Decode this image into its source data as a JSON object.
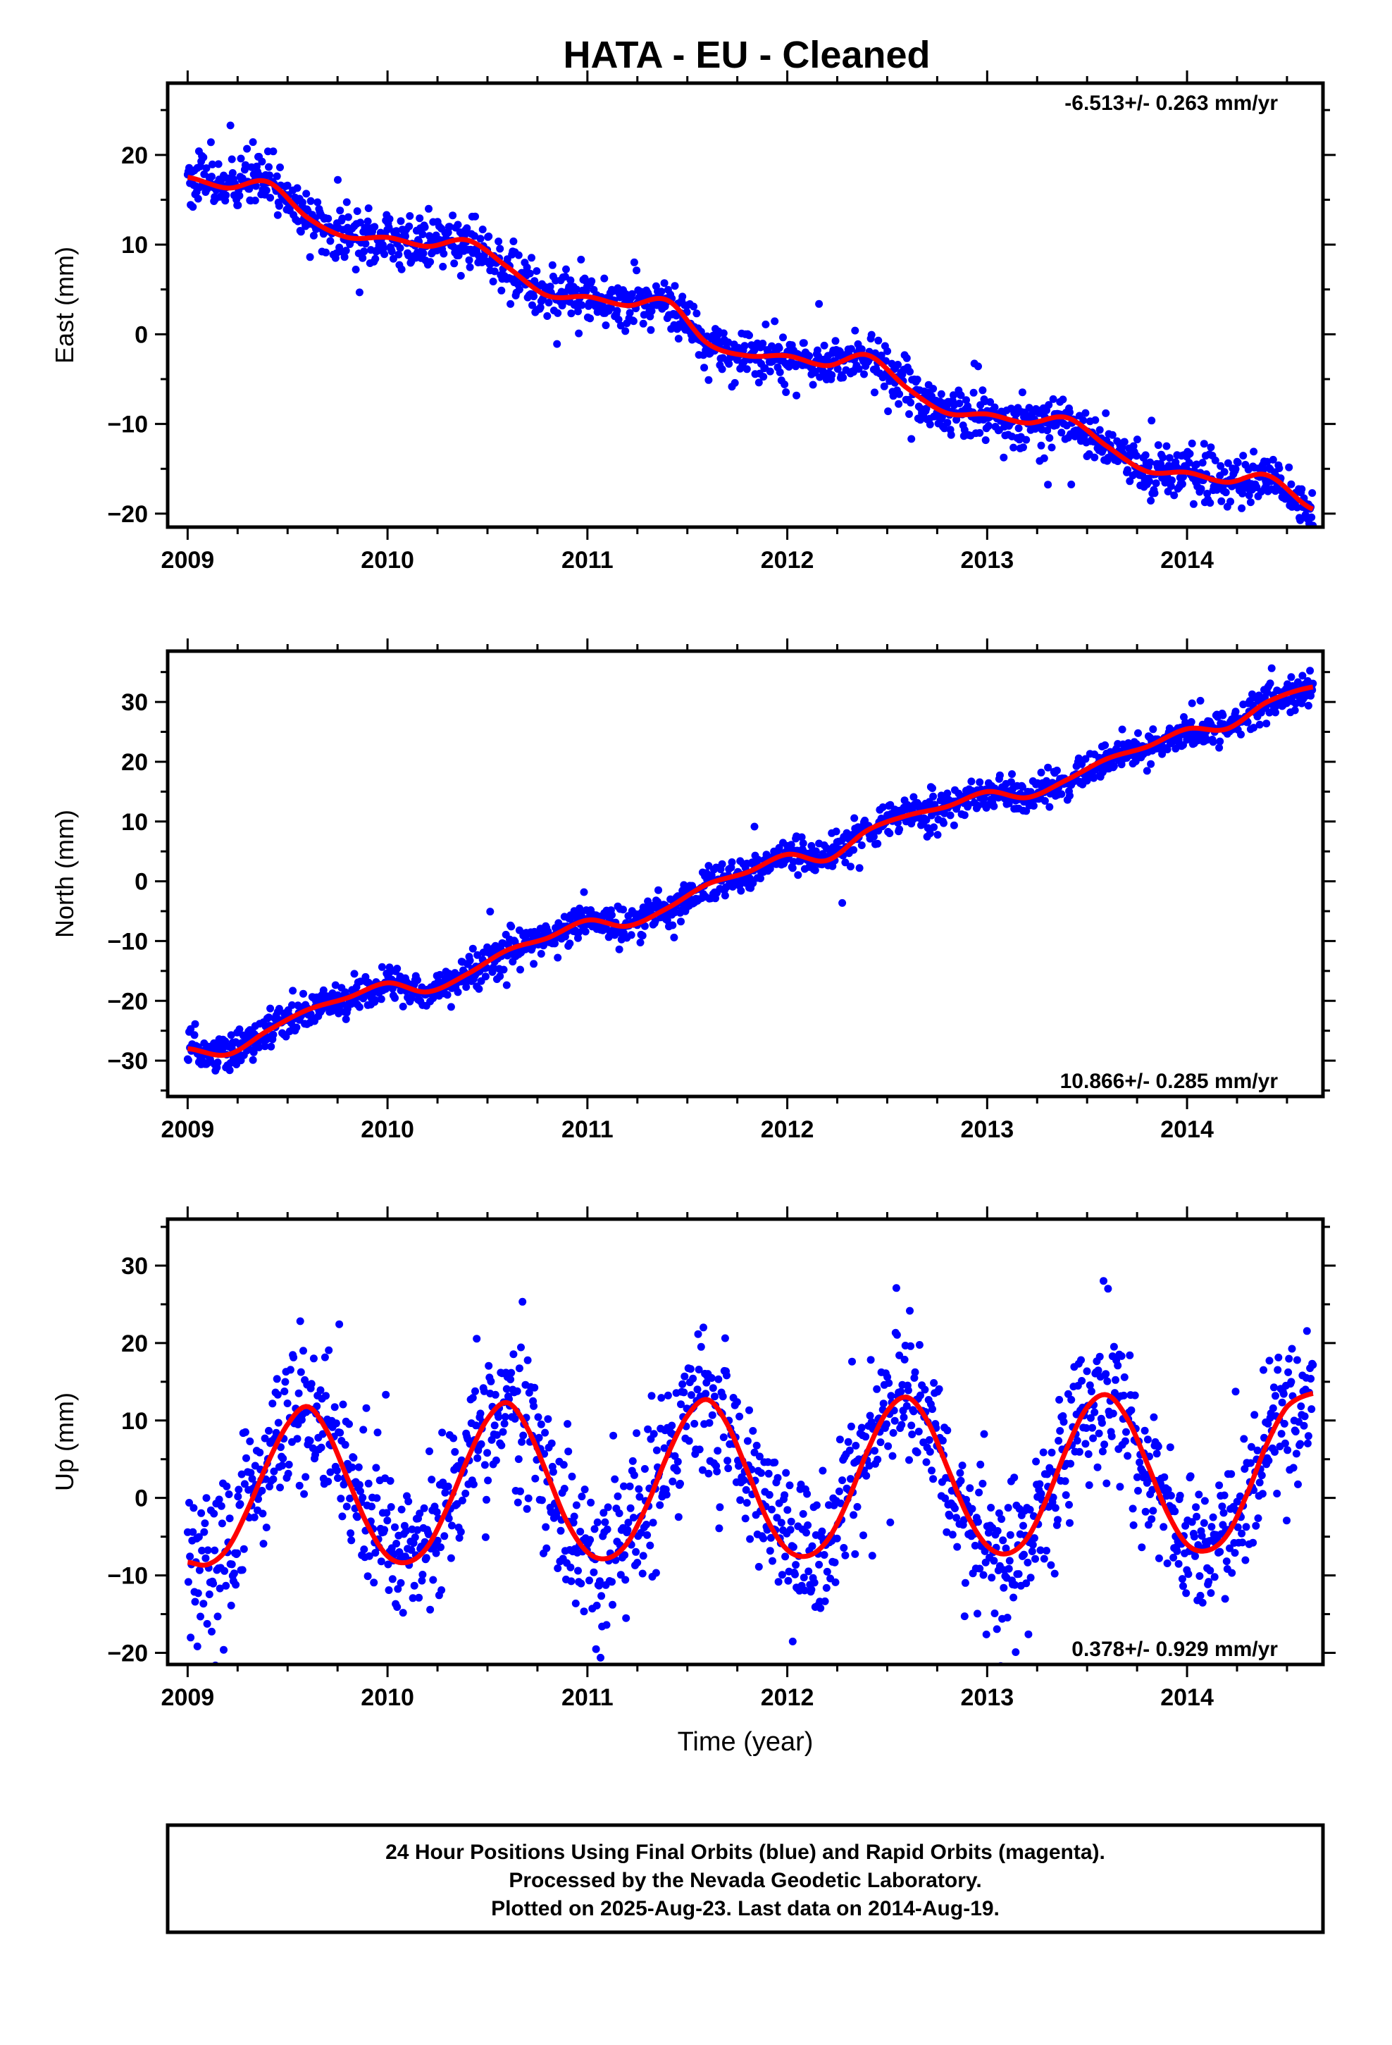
{
  "title": "HATA  - EU - Cleaned",
  "colors": {
    "points": "#0000ff",
    "model": "#ff0000",
    "axis": "#000000"
  },
  "footer": {
    "line1": "24 Hour Positions Using Final Orbits (blue) and Rapid Orbits (magenta).",
    "line2": "Processed by the Nevada Geodetic Laboratory.",
    "line3": "Plotted on 2025-Aug-23. Last data on 2014-Aug-19."
  },
  "chart_data": [
    {
      "type": "scatter",
      "ylabel": "East (mm)",
      "xlabel": "",
      "rate": "-6.513+/- 0.263 mm/yr",
      "xlim": [
        2008.9,
        2014.68
      ],
      "ylim": [
        -21.5,
        28
      ],
      "xticks": [
        "2009",
        "2010",
        "2011",
        "2012",
        "2013",
        "2014"
      ],
      "yticks": [
        "20",
        "10",
        "0",
        "−10",
        "−20"
      ],
      "model_x": [
        2009.0,
        2009.2,
        2009.4,
        2009.6,
        2009.8,
        2010.0,
        2010.2,
        2010.4,
        2010.6,
        2010.8,
        2011.0,
        2011.2,
        2011.4,
        2011.6,
        2011.8,
        2012.0,
        2012.2,
        2012.4,
        2012.6,
        2012.8,
        2013.0,
        2013.2,
        2013.4,
        2013.6,
        2013.8,
        2014.0,
        2014.2,
        2014.4,
        2014.63
      ],
      "model_y": [
        17.5,
        16.3,
        17.0,
        13.0,
        10.8,
        10.8,
        9.8,
        10.5,
        7.5,
        4.3,
        4.2,
        3.2,
        3.8,
        -1.0,
        -2.4,
        -2.4,
        -3.5,
        -2.3,
        -6.0,
        -8.8,
        -8.9,
        -9.9,
        -9.3,
        -12.5,
        -15.3,
        -15.4,
        -16.5,
        -15.7,
        -19.5
      ],
      "points": {
        "scatter_mm": 1.4,
        "n": 1500,
        "t_start": 2009.0,
        "t_end": 2014.63
      }
    },
    {
      "type": "scatter",
      "ylabel": "North (mm)",
      "xlabel": "",
      "rate": "10.866+/- 0.285 mm/yr",
      "xlim": [
        2008.9,
        2014.68
      ],
      "ylim": [
        -36,
        38.5
      ],
      "xticks": [
        "2009",
        "2010",
        "2011",
        "2012",
        "2013",
        "2014"
      ],
      "yticks": [
        "30",
        "20",
        "10",
        "0",
        "−10",
        "−20",
        "−30"
      ],
      "model_x": [
        2009.0,
        2009.2,
        2009.4,
        2009.6,
        2009.8,
        2010.0,
        2010.2,
        2010.4,
        2010.6,
        2010.8,
        2011.0,
        2011.2,
        2011.4,
        2011.6,
        2011.8,
        2012.0,
        2012.2,
        2012.4,
        2012.6,
        2012.8,
        2013.0,
        2013.2,
        2013.4,
        2013.6,
        2013.8,
        2014.0,
        2014.2,
        2014.4,
        2014.63
      ],
      "model_y": [
        -28.0,
        -29.0,
        -25.0,
        -21.5,
        -19.5,
        -17.0,
        -18.5,
        -15.5,
        -11.5,
        -9.5,
        -6.5,
        -7.5,
        -4.5,
        -0.5,
        1.5,
        4.5,
        3.5,
        8.5,
        11.0,
        12.5,
        15.0,
        14.0,
        17.0,
        20.5,
        22.5,
        25.5,
        25.5,
        30.0,
        32.5
      ],
      "points": {
        "scatter_mm": 1.5,
        "n": 1500,
        "t_start": 2009.0,
        "t_end": 2014.63
      }
    },
    {
      "type": "scatter",
      "ylabel": "Up (mm)",
      "xlabel": "Time (year)",
      "rate": "0.378+/- 0.929 mm/yr",
      "xlim": [
        2008.9,
        2014.68
      ],
      "ylim": [
        -21.5,
        36
      ],
      "xticks": [
        "2009",
        "2010",
        "2011",
        "2012",
        "2013",
        "2014"
      ],
      "yticks": [
        "30",
        "20",
        "10",
        "0",
        "−10",
        "−20"
      ],
      "model_x": [
        2009.0,
        2009.1,
        2009.2,
        2009.3,
        2009.4,
        2009.5,
        2009.6,
        2009.7,
        2009.8,
        2009.9,
        2010.0,
        2010.1,
        2010.2,
        2010.3,
        2010.4,
        2010.5,
        2010.6,
        2010.7,
        2010.8,
        2010.9,
        2011.0,
        2011.1,
        2011.2,
        2011.3,
        2011.4,
        2011.5,
        2011.6,
        2011.7,
        2011.8,
        2011.9,
        2012.0,
        2012.1,
        2012.2,
        2012.3,
        2012.4,
        2012.5,
        2012.6,
        2012.7,
        2012.8,
        2012.9,
        2013.0,
        2013.1,
        2013.2,
        2013.3,
        2013.4,
        2013.5,
        2013.6,
        2013.7,
        2013.8,
        2013.9,
        2014.0,
        2014.1,
        2014.2,
        2014.3,
        2014.4,
        2014.5,
        2014.63
      ],
      "model_y": [
        -8.3,
        -8.6,
        -6.5,
        -1.5,
        4.5,
        9.5,
        11.8,
        8.5,
        2.5,
        -3.5,
        -7.5,
        -8.3,
        -6.3,
        -1.2,
        5.0,
        10.2,
        12.3,
        9.0,
        3.0,
        -3.2,
        -7.0,
        -7.8,
        -5.8,
        -0.8,
        5.5,
        10.6,
        12.7,
        9.5,
        3.5,
        -2.8,
        -6.7,
        -7.5,
        -5.5,
        -0.5,
        6.0,
        11.2,
        13.0,
        10.0,
        4.0,
        -2.2,
        -6.2,
        -7.2,
        -5.2,
        0.0,
        6.5,
        11.7,
        13.3,
        10.3,
        4.5,
        -1.8,
        -6.0,
        -6.8,
        -4.8,
        0.5,
        7.0,
        11.8,
        13.5
      ],
      "points": {
        "scatter_mm": 4.8,
        "n": 1500,
        "t_start": 2009.0,
        "t_end": 2014.63
      }
    }
  ]
}
